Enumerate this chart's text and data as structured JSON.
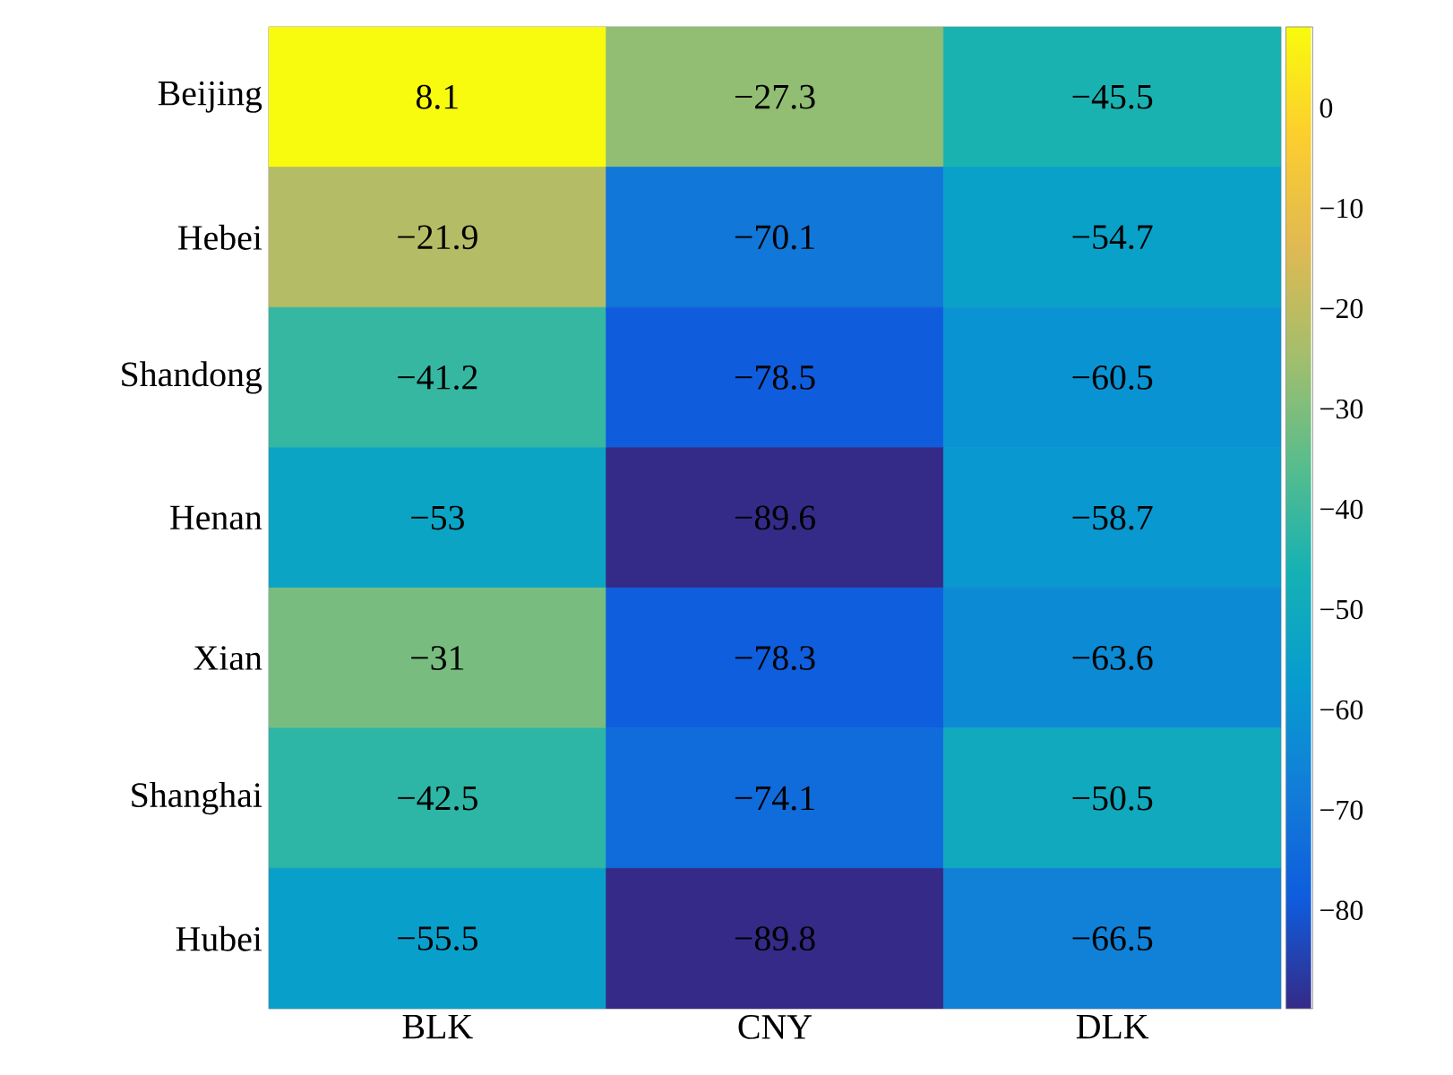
{
  "chart_data": {
    "type": "heatmap",
    "categories": [
      "BLK",
      "CNY",
      "DLK"
    ],
    "y_categories": [
      "Beijing",
      "Hebei",
      "Shandong",
      "Henan",
      "Xian",
      "Shanghai",
      "Hubei"
    ],
    "cells": [
      [
        8.1,
        -27.3,
        -45.5
      ],
      [
        -21.9,
        -70.1,
        -54.7
      ],
      [
        -41.2,
        -78.5,
        -60.5
      ],
      [
        -53,
        -89.6,
        -58.7
      ],
      [
        -31,
        -78.3,
        -63.6
      ],
      [
        -42.5,
        -74.1,
        -50.5
      ],
      [
        -55.5,
        -89.8,
        -66.5
      ]
    ],
    "cell_labels": [
      [
        "8.1",
        "−27.3",
        "−45.5"
      ],
      [
        "−21.9",
        "−70.1",
        "−54.7"
      ],
      [
        "−41.2",
        "−78.5",
        "−60.5"
      ],
      [
        "−53",
        "−89.6",
        "−58.7"
      ],
      [
        "−31",
        "−78.3",
        "−63.6"
      ],
      [
        "−42.5",
        "−74.1",
        "−50.5"
      ],
      [
        "−55.5",
        "−89.8",
        "−66.5"
      ]
    ],
    "clim": [
      -89.8,
      8.1
    ],
    "cticks": [
      {
        "value": 0,
        "label": "0"
      },
      {
        "value": -10,
        "label": "−10"
      },
      {
        "value": -20,
        "label": "−20"
      },
      {
        "value": -30,
        "label": "−30"
      },
      {
        "value": -40,
        "label": "−40"
      },
      {
        "value": -50,
        "label": "−50"
      },
      {
        "value": -60,
        "label": "−60"
      },
      {
        "value": -70,
        "label": "−70"
      },
      {
        "value": -80,
        "label": "−80"
      }
    ]
  }
}
